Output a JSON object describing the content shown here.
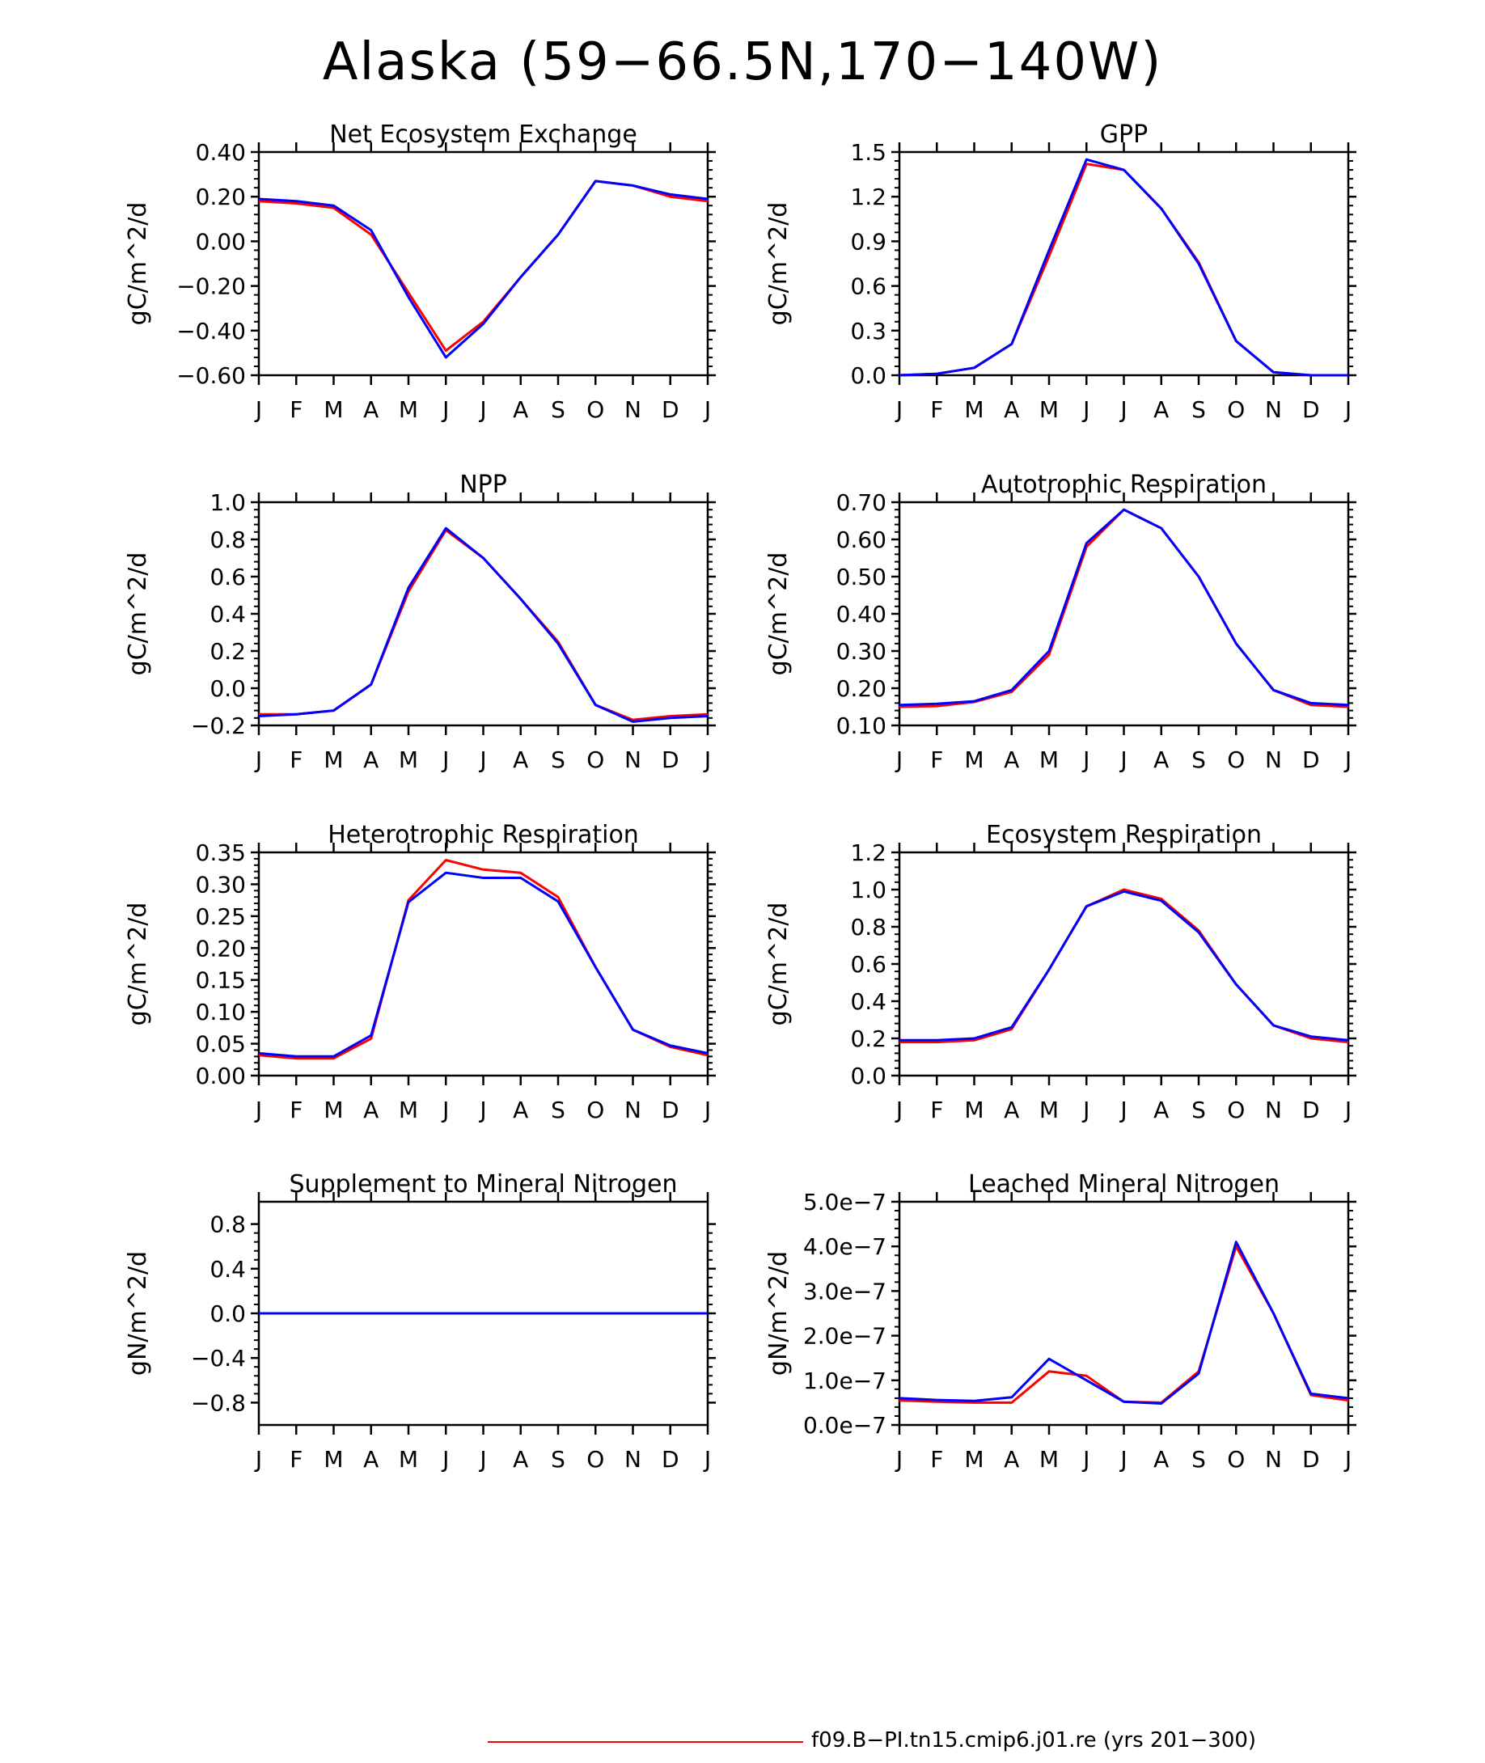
{
  "title": "Alaska (59−66.5N,170−140W)",
  "months": [
    "J",
    "F",
    "M",
    "A",
    "M",
    "J",
    "J",
    "A",
    "S",
    "O",
    "N",
    "D",
    "J"
  ],
  "colors": {
    "red": "#ff0000",
    "blue": "#0000ff"
  },
  "legend": {
    "label": "f09.B−PI.tn15.cmip6.j01.re (yrs 201−300)",
    "color": "#ff0000"
  },
  "chart_data": [
    {
      "type": "line",
      "title": "Net Ecosystem Exchange",
      "ylabel": "gC/m^2/d",
      "ylim": [
        -0.6,
        0.4
      ],
      "yticks": [
        -0.6,
        -0.4,
        -0.2,
        0.0,
        0.2,
        0.4
      ],
      "yticklabels": [
        "−0.60",
        "−0.40",
        "−0.20",
        "0.00",
        "0.20",
        "0.40"
      ],
      "series": [
        {
          "color": "#ff0000",
          "values": [
            0.18,
            0.17,
            0.15,
            0.03,
            -0.23,
            -0.49,
            -0.36,
            -0.16,
            0.03,
            0.27,
            0.25,
            0.2,
            0.18
          ]
        },
        {
          "color": "#0000ff",
          "values": [
            0.19,
            0.18,
            0.16,
            0.05,
            -0.25,
            -0.52,
            -0.37,
            -0.16,
            0.03,
            0.27,
            0.25,
            0.21,
            0.19
          ]
        }
      ]
    },
    {
      "type": "line",
      "title": "GPP",
      "ylabel": "gC/m^2/d",
      "ylim": [
        0,
        1.5
      ],
      "yticks": [
        0,
        0.3,
        0.6,
        0.9,
        1.2,
        1.5
      ],
      "yticklabels": [
        "0.0",
        "0.3",
        "0.6",
        "0.9",
        "1.2",
        "1.5"
      ],
      "series": [
        {
          "color": "#ff0000",
          "values": [
            0.0,
            0.01,
            0.05,
            0.21,
            0.8,
            1.42,
            1.38,
            1.12,
            0.76,
            0.23,
            0.02,
            0.0,
            0.0
          ]
        },
        {
          "color": "#0000ff",
          "values": [
            0.0,
            0.01,
            0.05,
            0.21,
            0.84,
            1.45,
            1.38,
            1.12,
            0.75,
            0.23,
            0.02,
            0.0,
            0.0
          ]
        }
      ]
    },
    {
      "type": "line",
      "title": "NPP",
      "ylabel": "gC/m^2/d",
      "ylim": [
        -0.2,
        1.0
      ],
      "yticks": [
        -0.2,
        0.0,
        0.2,
        0.4,
        0.6,
        0.8,
        1.0
      ],
      "yticklabels": [
        "−0.2",
        "0.0",
        "0.2",
        "0.4",
        "0.6",
        "0.8",
        "1.0"
      ],
      "series": [
        {
          "color": "#ff0000",
          "values": [
            -0.14,
            -0.14,
            -0.12,
            0.02,
            0.52,
            0.85,
            0.7,
            0.48,
            0.25,
            -0.09,
            -0.17,
            -0.15,
            -0.14
          ]
        },
        {
          "color": "#0000ff",
          "values": [
            -0.15,
            -0.14,
            -0.12,
            0.02,
            0.54,
            0.86,
            0.7,
            0.48,
            0.24,
            -0.09,
            -0.18,
            -0.16,
            -0.15
          ]
        }
      ]
    },
    {
      "type": "line",
      "title": "Autotrophic Respiration",
      "ylabel": "gC/m^2/d",
      "ylim": [
        0.1,
        0.7
      ],
      "yticks": [
        0.1,
        0.2,
        0.3,
        0.4,
        0.5,
        0.6,
        0.7
      ],
      "yticklabels": [
        "0.10",
        "0.20",
        "0.30",
        "0.40",
        "0.50",
        "0.60",
        "0.70"
      ],
      "series": [
        {
          "color": "#ff0000",
          "values": [
            0.15,
            0.152,
            0.163,
            0.19,
            0.29,
            0.58,
            0.68,
            0.63,
            0.5,
            0.32,
            0.195,
            0.155,
            0.15
          ]
        },
        {
          "color": "#0000ff",
          "values": [
            0.155,
            0.158,
            0.165,
            0.195,
            0.3,
            0.59,
            0.68,
            0.63,
            0.5,
            0.32,
            0.195,
            0.16,
            0.155
          ]
        }
      ]
    },
    {
      "type": "line",
      "title": "Heterotrophic Respiration",
      "ylabel": "gC/m^2/d",
      "ylim": [
        0,
        0.35
      ],
      "yticks": [
        0,
        0.05,
        0.1,
        0.15,
        0.2,
        0.25,
        0.3,
        0.35
      ],
      "yticklabels": [
        "0.00",
        "0.05",
        "0.10",
        "0.15",
        "0.20",
        "0.25",
        "0.30",
        "0.35"
      ],
      "series": [
        {
          "color": "#ff0000",
          "values": [
            0.032,
            0.027,
            0.027,
            0.058,
            0.275,
            0.338,
            0.323,
            0.318,
            0.28,
            0.17,
            0.072,
            0.045,
            0.032
          ]
        },
        {
          "color": "#0000ff",
          "values": [
            0.035,
            0.03,
            0.03,
            0.063,
            0.272,
            0.318,
            0.31,
            0.31,
            0.273,
            0.17,
            0.072,
            0.047,
            0.035
          ]
        }
      ]
    },
    {
      "type": "line",
      "title": "Ecosystem Respiration",
      "ylabel": "gC/m^2/d",
      "ylim": [
        0,
        1.2
      ],
      "yticks": [
        0,
        0.2,
        0.4,
        0.6,
        0.8,
        1.0,
        1.2
      ],
      "yticklabels": [
        "0.0",
        "0.2",
        "0.4",
        "0.6",
        "0.8",
        "1.0",
        "1.2"
      ],
      "series": [
        {
          "color": "#ff0000",
          "values": [
            0.18,
            0.18,
            0.19,
            0.25,
            0.57,
            0.91,
            1.0,
            0.95,
            0.78,
            0.49,
            0.27,
            0.2,
            0.18
          ]
        },
        {
          "color": "#0000ff",
          "values": [
            0.19,
            0.19,
            0.2,
            0.26,
            0.57,
            0.91,
            0.99,
            0.94,
            0.77,
            0.49,
            0.27,
            0.21,
            0.19
          ]
        }
      ]
    },
    {
      "type": "line",
      "title": "Supplement to Mineral Nitrogen",
      "ylabel": "gN/m^2/d",
      "ylim": [
        -1.0,
        1.0
      ],
      "yticks": [
        -0.8,
        -0.4,
        0.0,
        0.4,
        0.8
      ],
      "yticklabels": [
        "−0.8",
        "−0.4",
        "0.0",
        "0.4",
        "0.8"
      ],
      "series": [
        {
          "color": "#ff0000",
          "values": [
            0,
            0,
            0,
            0,
            0,
            0,
            0,
            0,
            0,
            0,
            0,
            0,
            0
          ]
        },
        {
          "color": "#0000ff",
          "values": [
            0,
            0,
            0,
            0,
            0,
            0,
            0,
            0,
            0,
            0,
            0,
            0,
            0
          ]
        }
      ]
    },
    {
      "type": "line",
      "title": "Leached Mineral Nitrogen",
      "ylabel": "gN/m^2/d",
      "ylim": [
        0,
        5e-07
      ],
      "yticks": [
        0,
        1e-07,
        2e-07,
        3e-07,
        4e-07,
        5e-07
      ],
      "yticklabels": [
        "0.0e−7",
        "1.0e−7",
        "2.0e−7",
        "3.0e−7",
        "4.0e−7",
        "5.0e−7"
      ],
      "series": [
        {
          "color": "#ff0000",
          "values": [
            5.5e-08,
            5.2e-08,
            5e-08,
            5e-08,
            1.2e-07,
            1.1e-07,
            5.2e-08,
            5e-08,
            1.2e-07,
            4e-07,
            2.5e-07,
            6.7e-08,
            5.5e-08
          ]
        },
        {
          "color": "#0000ff",
          "values": [
            6e-08,
            5.6e-08,
            5.4e-08,
            6.2e-08,
            1.48e-07,
            1e-07,
            5.2e-08,
            4.8e-08,
            1.15e-07,
            4.1e-07,
            2.5e-07,
            7e-08,
            6e-08
          ]
        }
      ]
    }
  ]
}
